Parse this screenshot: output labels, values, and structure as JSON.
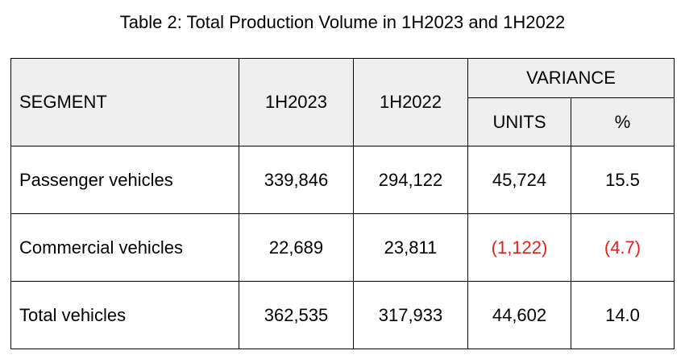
{
  "title": "Table 2: Total Production Volume in 1H2023 and 1H2022",
  "headers": {
    "segment": "SEGMENT",
    "col_1h2023": "1H2023",
    "col_1h2022": "1H2022",
    "variance": "VARIANCE",
    "units": "UNITS",
    "percent": "%"
  },
  "rows": [
    {
      "segment": "Passenger vehicles",
      "h2023": "339,846",
      "h2022": "294,122",
      "units": "45,724",
      "percent": "15.5"
    },
    {
      "segment": "Commercial vehicles",
      "h2023": "22,689",
      "h2022": "23,811",
      "units": "(1,122)",
      "percent": "(4.7)"
    },
    {
      "segment": "Total vehicles",
      "h2023": "362,535",
      "h2022": "317,933",
      "units": "44,602",
      "percent": "14.0"
    }
  ],
  "colors": {
    "negative": "#e0221b",
    "header_bg": "#efefef"
  }
}
